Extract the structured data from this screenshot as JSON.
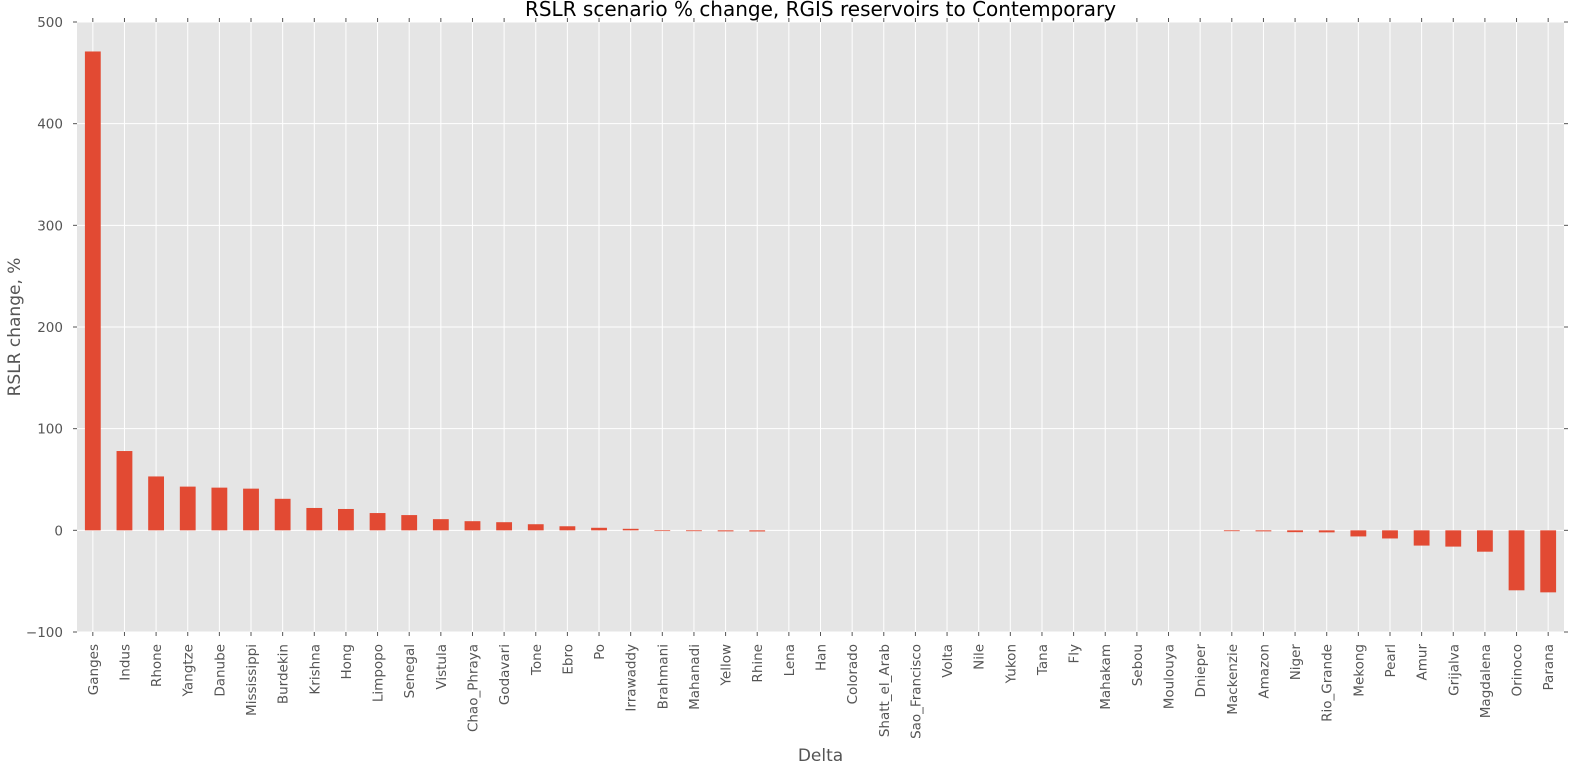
{
  "chart_data": {
    "type": "bar",
    "title": "RSLR scenario % change, RGIS reservoirs to Contemporary",
    "xlabel": "Delta",
    "ylabel": "RSLR change, %",
    "ylim": [
      -100,
      500
    ],
    "yticks": [
      -100,
      0,
      100,
      200,
      300,
      400,
      500
    ],
    "ytick_labels": [
      "−100",
      "0",
      "100",
      "200",
      "300",
      "400",
      "500"
    ],
    "grid": true,
    "bar_color": "#E24A33",
    "background_color": "#E5E5E5",
    "categories": [
      "Ganges",
      "Indus",
      "Rhone",
      "Yangtze",
      "Danube",
      "Mississippi",
      "Burdekin",
      "Krishna",
      "Hong",
      "Limpopo",
      "Senegal",
      "Vistula",
      "Chao_Phraya",
      "Godavari",
      "Tone",
      "Ebro",
      "Po",
      "Irrawaddy",
      "Brahmani",
      "Mahanadi",
      "Yellow",
      "Rhine",
      "Lena",
      "Han",
      "Colorado",
      "Shatt_el_Arab",
      "Sao_Francisco",
      "Volta",
      "Nile",
      "Yukon",
      "Tana",
      "Fly",
      "Mahakam",
      "Sebou",
      "Moulouya",
      "Dnieper",
      "Mackenzie",
      "Amazon",
      "Niger",
      "Rio_Grande",
      "Mekong",
      "Pearl",
      "Amur",
      "Grijalva",
      "Magdalena",
      "Orinoco",
      "Parana"
    ],
    "values": [
      471,
      78,
      53,
      43,
      42,
      41,
      31,
      22,
      21,
      17,
      15,
      11,
      9,
      8,
      6,
      4,
      2.5,
      1.5,
      -0.7,
      -0.8,
      -1,
      -1.1,
      0,
      0,
      0,
      0,
      0,
      0,
      0,
      0,
      0,
      0,
      0,
      0,
      0,
      0,
      -0.8,
      -1,
      -1.8,
      -2,
      -6,
      -8,
      -15,
      -16,
      -21,
      -59,
      -61
    ]
  }
}
